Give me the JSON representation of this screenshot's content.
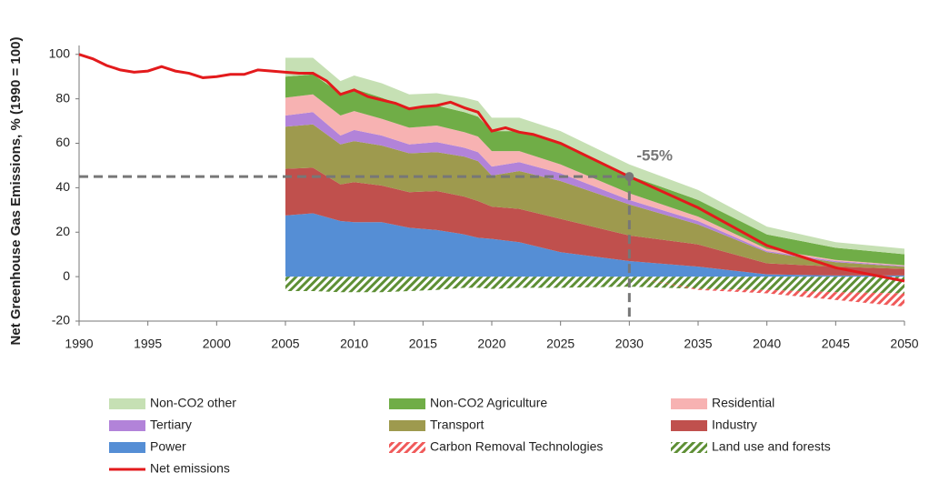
{
  "chart_data": {
    "type": "stacked_area",
    "y_label": "Net Greenhouse Gas Emissions, % (1990 = 100)",
    "xlim": [
      1990,
      2050
    ],
    "xticks": [
      1990,
      1995,
      2000,
      2005,
      2010,
      2015,
      2020,
      2025,
      2030,
      2035,
      2040,
      2045,
      2050
    ],
    "ylim": [
      -20,
      104
    ],
    "yticks": [
      -20,
      0,
      20,
      40,
      60,
      80,
      100
    ],
    "annotation": {
      "text": "-55%",
      "x": 2030,
      "y": 45
    },
    "x": [
      2005,
      2007,
      2009,
      2010,
      2012,
      2014,
      2016,
      2018,
      2019,
      2020,
      2022,
      2025,
      2030,
      2035,
      2040,
      2045,
      2050
    ],
    "series": [
      {
        "name": "Non-CO2 other",
        "type": "area",
        "color": "#c6e0b4",
        "values": [
          8.5,
          7.5,
          5.5,
          6,
          6.5,
          6,
          5.5,
          6.5,
          7,
          6,
          6,
          6,
          5,
          4.5,
          3.5,
          2.5,
          2.5
        ]
      },
      {
        "name": "Non-CO2 Agriculture",
        "type": "area",
        "color": "#70ad47",
        "values": [
          9.5,
          9,
          10,
          10,
          9.5,
          9,
          9,
          9,
          9,
          9,
          9,
          9,
          8,
          7.5,
          6.5,
          5.5,
          5
        ]
      },
      {
        "name": "Residential",
        "type": "area",
        "color": "#f7b2b2",
        "values": [
          8,
          8,
          9,
          8.5,
          7.5,
          7.5,
          7.5,
          7,
          7,
          7,
          5,
          4,
          3,
          2,
          1,
          0.5,
          0.3
        ]
      },
      {
        "name": "Tertiary",
        "type": "area",
        "color": "#b283d9",
        "values": [
          5,
          5.5,
          4,
          5,
          4.5,
          4,
          4.5,
          4,
          4,
          4,
          4,
          3.5,
          2,
          1.5,
          0.5,
          0.5,
          0.3
        ]
      },
      {
        "name": "Transport",
        "type": "area",
        "color": "#9e9a4e",
        "values": [
          19,
          19.5,
          18,
          18.5,
          18,
          17.5,
          17.5,
          18,
          18,
          14,
          17,
          17,
          14,
          9,
          5,
          2,
          1
        ]
      },
      {
        "name": "Industry",
        "type": "area",
        "color": "#c0504d",
        "values": [
          21,
          20.5,
          16.5,
          18,
          16.5,
          16,
          17.5,
          17,
          16.5,
          14.5,
          15,
          15,
          11.5,
          10,
          5,
          4,
          3
        ]
      },
      {
        "name": "Power",
        "type": "area",
        "color": "#558ed5",
        "values": [
          27.5,
          28.5,
          25,
          24.5,
          24.5,
          22,
          21,
          19,
          17.5,
          17,
          15.5,
          11,
          7,
          4.5,
          1,
          0.5,
          0.5
        ]
      },
      {
        "name": "Carbon Removal Technologies",
        "type": "area",
        "hatch": true,
        "color": "#f05a5a",
        "values": [
          0,
          0,
          0,
          0,
          0,
          0,
          0,
          0,
          0,
          0,
          0,
          0,
          0,
          -0.5,
          -1.5,
          -3.5,
          -6
        ]
      },
      {
        "name": "Land use and forests",
        "type": "area",
        "hatch": true,
        "color": "#5e8f35",
        "values": [
          -6.5,
          -6.5,
          -7,
          -7,
          -7,
          -6.5,
          -6,
          -5,
          -5,
          -5.5,
          -5,
          -5,
          -4.5,
          -5.5,
          -6,
          -7,
          -7.5
        ]
      },
      {
        "name": "Net emissions",
        "type": "line",
        "color": "#e31a1c",
        "x": [
          1990,
          1991,
          1992,
          1993,
          1994,
          1995,
          1996,
          1997,
          1998,
          1999,
          2000,
          2001,
          2002,
          2003,
          2004,
          2005,
          2006,
          2007,
          2008,
          2009,
          2010,
          2011,
          2012,
          2013,
          2014,
          2015,
          2016,
          2017,
          2018,
          2019,
          2020,
          2021,
          2022,
          2023,
          2025,
          2030,
          2035,
          2040,
          2045,
          2050
        ],
        "values": [
          100,
          98,
          95,
          93,
          92,
          92.5,
          94.5,
          92.5,
          91.5,
          89.5,
          90,
          91,
          91,
          93,
          92.5,
          92,
          91.5,
          91.5,
          88,
          82,
          84,
          81,
          79.5,
          78,
          75.5,
          76.5,
          77,
          78.5,
          76,
          74,
          65.5,
          67,
          65,
          64,
          60,
          45,
          31,
          14,
          4,
          -2
        ]
      }
    ]
  }
}
